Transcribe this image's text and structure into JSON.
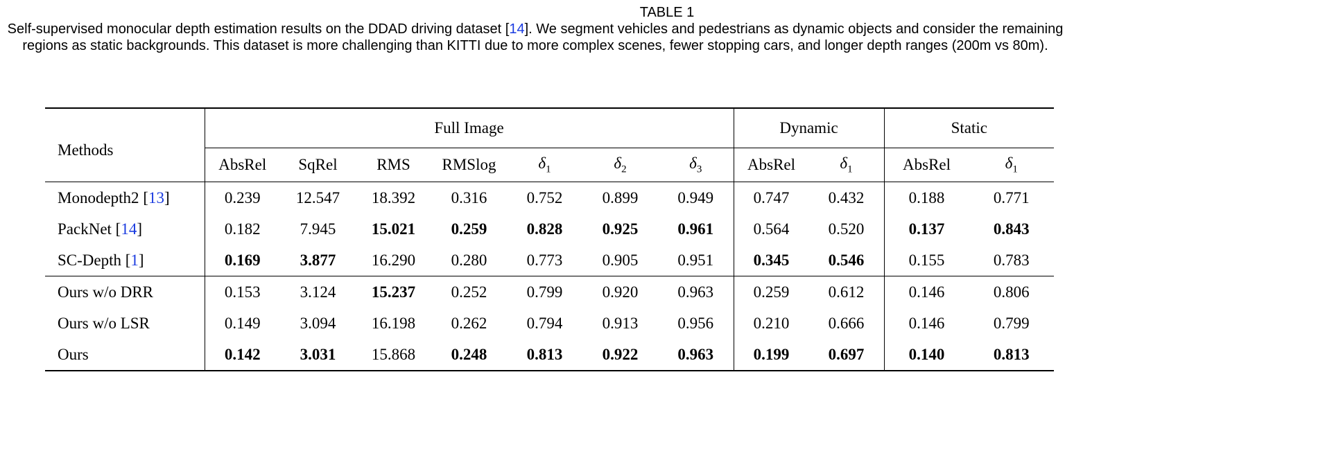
{
  "caption": {
    "title": "TABLE 1",
    "text_before_ref": "Self-supervised monocular depth estimation results on the DDAD driving dataset [",
    "ref": "14",
    "text_after_ref": "]. We segment vehicles and pedestrians as dynamic objects and consider the remaining regions as static backgrounds. This dataset is more challenging than KITTI due to more complex scenes, fewer stopping cars, and longer depth ranges (200m vs 80m)."
  },
  "table": {
    "groups": [
      {
        "label": "Full Image",
        "span": 7
      },
      {
        "label": "Dynamic",
        "span": 2
      },
      {
        "label": "Static",
        "span": 2
      }
    ],
    "method_header": "Methods",
    "columns": [
      "AbsRel",
      "SqRel",
      "RMS",
      "RMSlog",
      "δ|1",
      "δ|2",
      "δ|3",
      "AbsRel",
      "δ|1",
      "AbsRel",
      "δ|1"
    ],
    "rows": [
      {
        "method": "Monodepth2",
        "ref": "13",
        "values": [
          "0.239",
          "12.547",
          "18.392",
          "0.316",
          "0.752",
          "0.899",
          "0.949",
          "0.747",
          "0.432",
          "0.188",
          "0.771"
        ],
        "bold": []
      },
      {
        "method": "PackNet",
        "ref": "14",
        "values": [
          "0.182",
          "7.945",
          "15.021",
          "0.259",
          "0.828",
          "0.925",
          "0.961",
          "0.564",
          "0.520",
          "0.137",
          "0.843"
        ],
        "bold": [
          2,
          3,
          4,
          5,
          6,
          9,
          10
        ]
      },
      {
        "method": "SC-Depth",
        "ref": "1",
        "values": [
          "0.169",
          "3.877",
          "16.290",
          "0.280",
          "0.773",
          "0.905",
          "0.951",
          "0.345",
          "0.546",
          "0.155",
          "0.783"
        ],
        "bold": [
          0,
          1,
          7,
          8
        ]
      },
      {
        "method": "Ours w/o DRR",
        "values": [
          "0.153",
          "3.124",
          "15.237",
          "0.252",
          "0.799",
          "0.920",
          "0.963",
          "0.259",
          "0.612",
          "0.146",
          "0.806"
        ],
        "bold": [
          2
        ]
      },
      {
        "method": "Ours w/o LSR",
        "values": [
          "0.149",
          "3.094",
          "16.198",
          "0.262",
          "0.794",
          "0.913",
          "0.956",
          "0.210",
          "0.666",
          "0.146",
          "0.799"
        ],
        "bold": []
      },
      {
        "method": "Ours",
        "values": [
          "0.142",
          "3.031",
          "15.868",
          "0.248",
          "0.813",
          "0.922",
          "0.963",
          "0.199",
          "0.697",
          "0.140",
          "0.813"
        ],
        "bold": [
          0,
          1,
          3,
          4,
          5,
          6,
          7,
          8,
          9,
          10
        ]
      }
    ]
  }
}
